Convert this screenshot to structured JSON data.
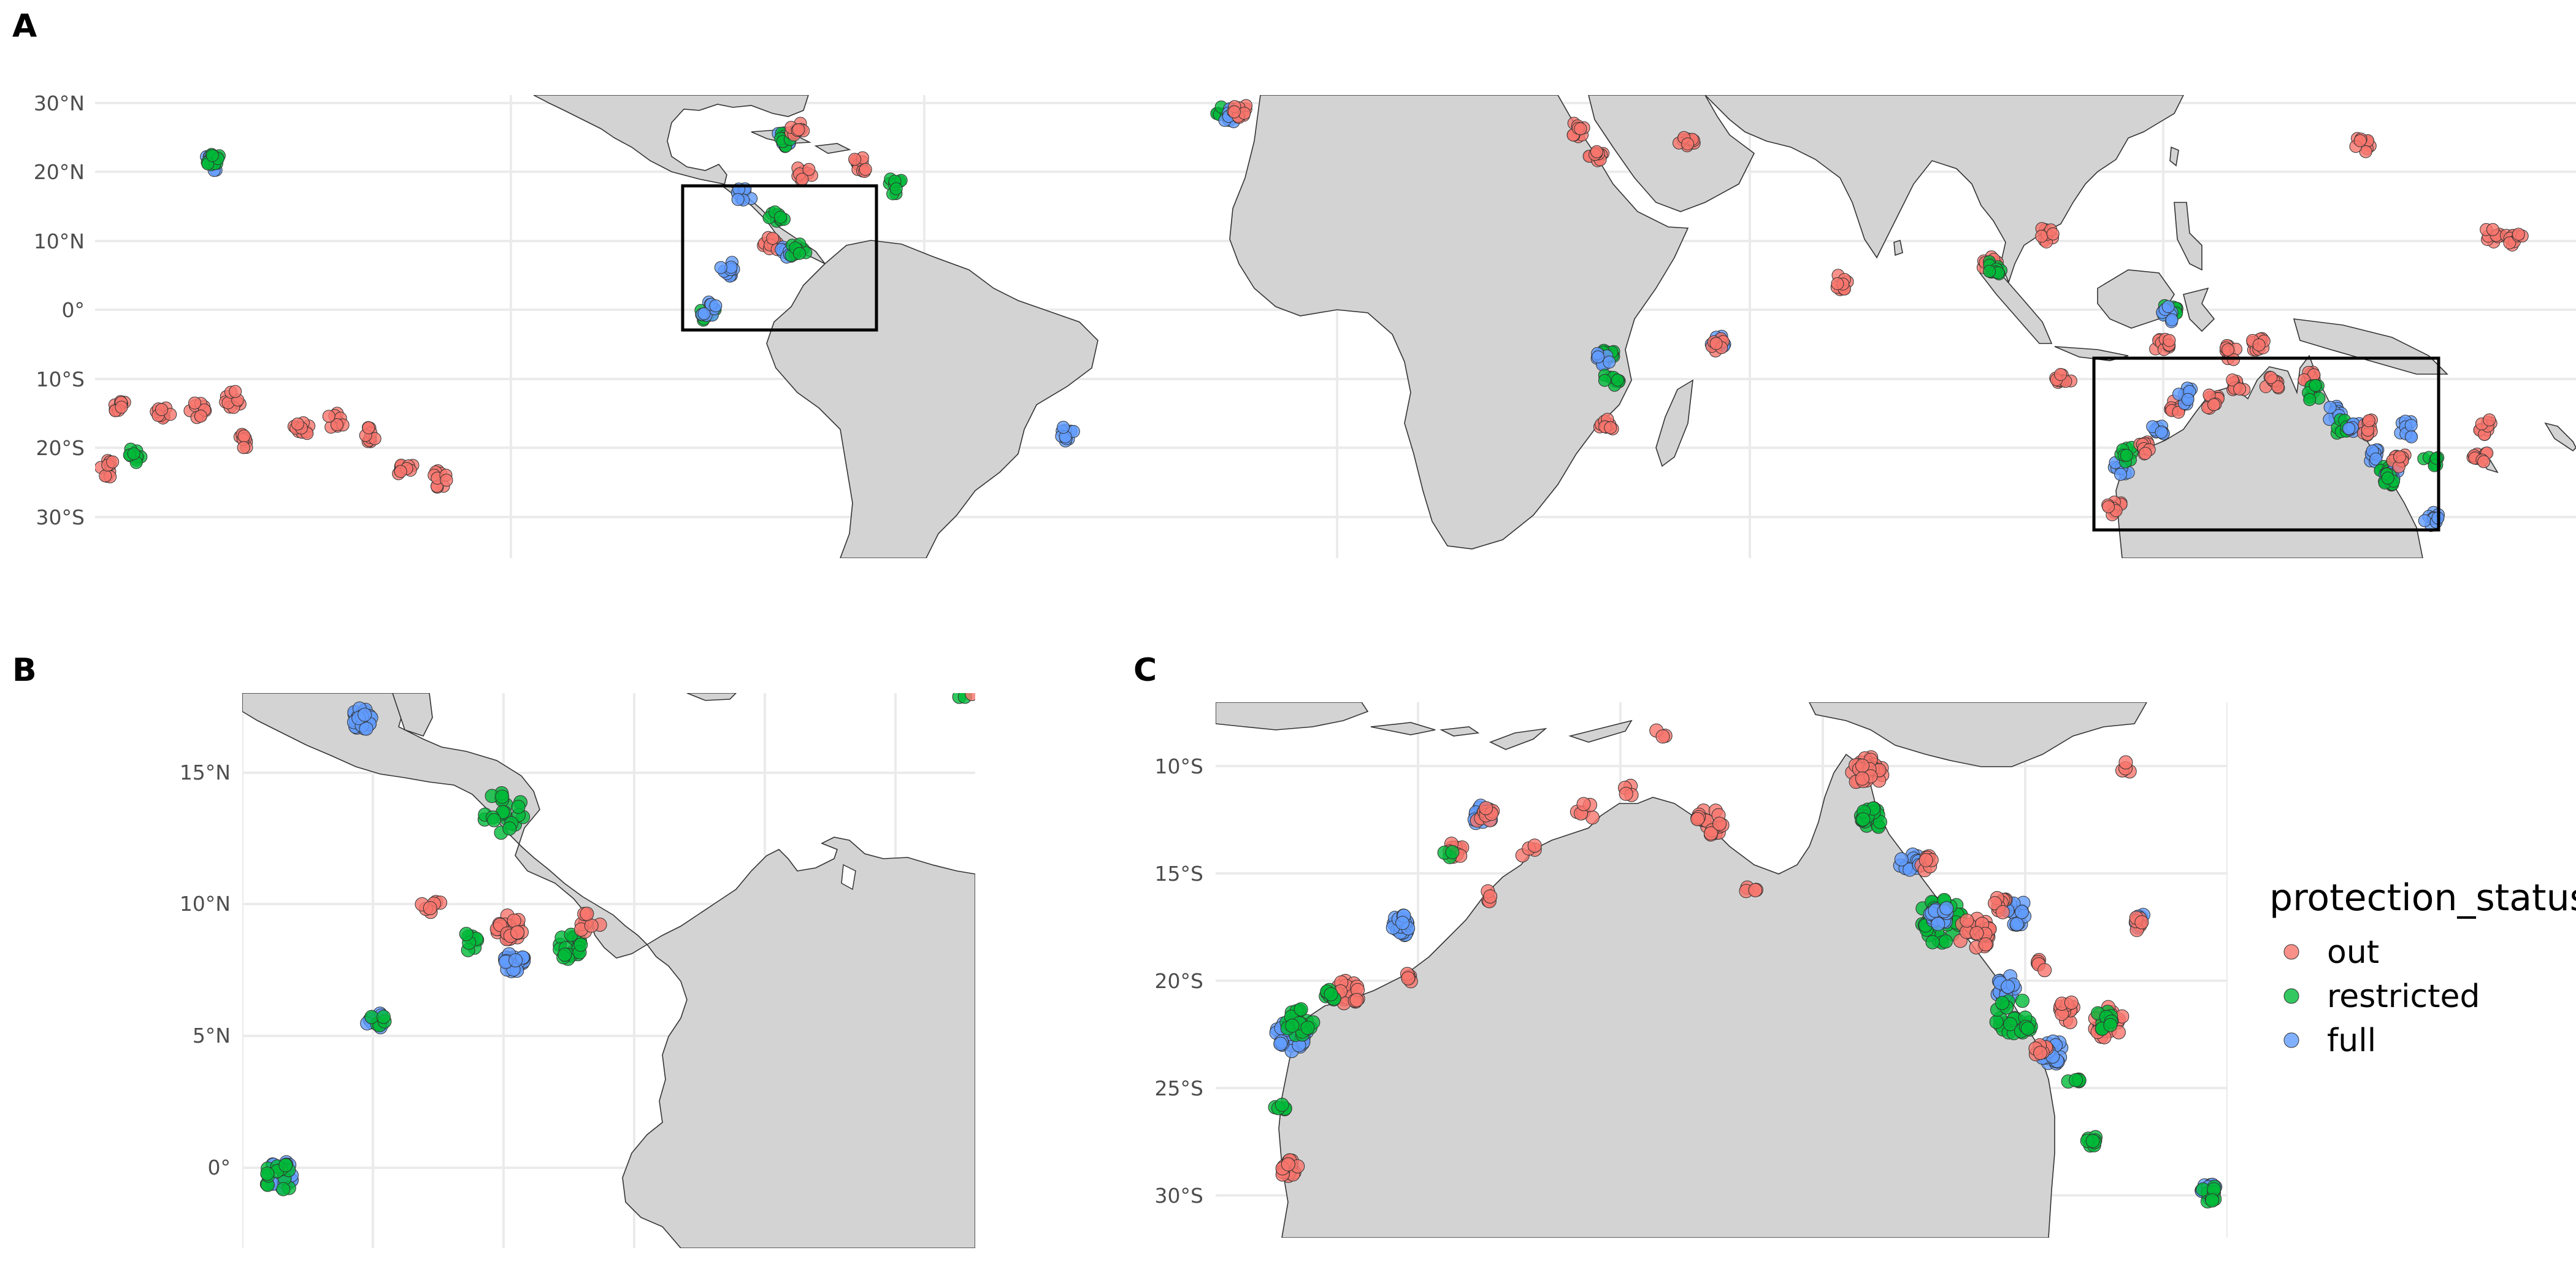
{
  "panels": {
    "A": {
      "letter": "A",
      "y_ticks": [
        "30°N",
        "20°N",
        "10°N",
        "0°",
        "10°S",
        "20°S",
        "30°S"
      ]
    },
    "B": {
      "letter": "B",
      "y_ticks": [
        "15°N",
        "10°N",
        "5°N",
        "0°"
      ]
    },
    "C": {
      "letter": "C",
      "y_ticks": [
        "10°S",
        "15°S",
        "20°S",
        "25°S",
        "30°S"
      ]
    }
  },
  "legend": {
    "title": "protection_status",
    "items": [
      {
        "label": "out",
        "color": "#F8766D"
      },
      {
        "label": "restricted",
        "color": "#00BA38"
      },
      {
        "label": "full",
        "color": "#619CFF"
      }
    ]
  },
  "map_data": {
    "type": "map",
    "projection": "equirectangular",
    "land_color": "#d3d3d3",
    "grid": true,
    "legend_placement": "right",
    "colors": {
      "out": "#F8766D",
      "restricted": "#00BA38",
      "full": "#619CFF"
    },
    "panel_A": {
      "lon_range": [
        -180,
        180
      ],
      "lat_range": [
        -36,
        31
      ],
      "extent_boxes": [
        {
          "lon": [
            -92,
            -64
          ],
          "lat": [
            -3,
            18
          ]
        },
        {
          "lon": [
            110,
            160
          ],
          "lat": [
            -32,
            -7
          ]
        }
      ],
      "clusters": [
        {
          "status": "full",
          "lon": -163,
          "lat": 21.3
        },
        {
          "status": "restricted",
          "lon": -163,
          "lat": 21.8
        },
        {
          "status": "out",
          "lon": -176,
          "lat": -14
        },
        {
          "status": "out",
          "lon": -170,
          "lat": -15
        },
        {
          "status": "out",
          "lon": -165,
          "lat": -14.5
        },
        {
          "status": "out",
          "lon": -160,
          "lat": -13
        },
        {
          "status": "out",
          "lon": -158,
          "lat": -19
        },
        {
          "status": "out",
          "lon": -150,
          "lat": -17
        },
        {
          "status": "out",
          "lon": -145,
          "lat": -16
        },
        {
          "status": "out",
          "lon": -140,
          "lat": -18
        },
        {
          "status": "out",
          "lon": -135,
          "lat": -23
        },
        {
          "status": "out",
          "lon": -130,
          "lat": -24.5
        },
        {
          "status": "out",
          "lon": -178,
          "lat": -23
        },
        {
          "status": "restricted",
          "lon": -174,
          "lat": -21
        },
        {
          "status": "full",
          "lon": -86,
          "lat": 16.5
        },
        {
          "status": "out",
          "lon": -82,
          "lat": 9.5
        },
        {
          "status": "full",
          "lon": -80,
          "lat": 8
        },
        {
          "status": "restricted",
          "lon": -78,
          "lat": 8.5
        },
        {
          "status": "restricted",
          "lon": -81,
          "lat": 13.5
        },
        {
          "status": "full",
          "lon": -88,
          "lat": 6
        },
        {
          "status": "restricted",
          "lon": -91,
          "lat": -0.5
        },
        {
          "status": "full",
          "lon": -91,
          "lat": 0
        },
        {
          "status": "full",
          "lon": -80,
          "lat": 25
        },
        {
          "status": "restricted",
          "lon": -80,
          "lat": 24.5
        },
        {
          "status": "out",
          "lon": -78,
          "lat": 26
        },
        {
          "status": "out",
          "lon": -77,
          "lat": 20
        },
        {
          "status": "out",
          "lon": -69,
          "lat": 21
        },
        {
          "status": "restricted",
          "lon": -64,
          "lat": 18
        },
        {
          "status": "full",
          "lon": -39,
          "lat": -18
        },
        {
          "status": "restricted",
          "lon": -16,
          "lat": 28.5
        },
        {
          "status": "full",
          "lon": -15,
          "lat": 28
        },
        {
          "status": "out",
          "lon": -14,
          "lat": 29
        },
        {
          "status": "out",
          "lon": 35,
          "lat": 26
        },
        {
          "status": "out",
          "lon": 38,
          "lat": 22
        },
        {
          "status": "out",
          "lon": 51,
          "lat": 24
        },
        {
          "status": "restricted",
          "lon": 39.5,
          "lat": -6
        },
        {
          "status": "full",
          "lon": 39,
          "lat": -7
        },
        {
          "status": "restricted",
          "lon": 40,
          "lat": -10
        },
        {
          "status": "out",
          "lon": 39.5,
          "lat": -17
        },
        {
          "status": "full",
          "lon": 55.5,
          "lat": -4.5
        },
        {
          "status": "out",
          "lon": 55.5,
          "lat": -4.8
        },
        {
          "status": "out",
          "lon": 73.5,
          "lat": 4
        },
        {
          "status": "out",
          "lon": 95,
          "lat": 6.5
        },
        {
          "status": "restricted",
          "lon": 95.5,
          "lat": 6
        },
        {
          "status": "out",
          "lon": 103,
          "lat": 11
        },
        {
          "status": "out",
          "lon": 105.5,
          "lat": -10.5
        },
        {
          "status": "restricted",
          "lon": 121,
          "lat": 0
        },
        {
          "status": "full",
          "lon": 121,
          "lat": -0.5
        },
        {
          "status": "out",
          "lon": 120,
          "lat": -5
        },
        {
          "status": "out",
          "lon": 130,
          "lat": -6
        },
        {
          "status": "out",
          "lon": 134,
          "lat": -5
        },
        {
          "status": "out",
          "lon": 149,
          "lat": 24
        },
        {
          "status": "out",
          "lon": 168,
          "lat": 11
        },
        {
          "status": "out",
          "lon": 171,
          "lat": 10.5
        },
        {
          "status": "out",
          "lon": 167,
          "lat": -17
        },
        {
          "status": "out",
          "lon": 166,
          "lat": -21
        },
        {
          "status": "restricted",
          "lon": 159,
          "lat": -22
        },
        {
          "status": "full",
          "lon": 159,
          "lat": -30
        },
        {
          "status": "out",
          "lon": 113,
          "lat": -28.5
        },
        {
          "status": "full",
          "lon": 114,
          "lat": -23
        },
        {
          "status": "restricted",
          "lon": 115,
          "lat": -21
        },
        {
          "status": "out",
          "lon": 117,
          "lat": -20
        },
        {
          "status": "full",
          "lon": 119,
          "lat": -17.5
        },
        {
          "status": "out",
          "lon": 122,
          "lat": -14
        },
        {
          "status": "full",
          "lon": 123.5,
          "lat": -12.5
        },
        {
          "status": "out",
          "lon": 127,
          "lat": -13
        },
        {
          "status": "out",
          "lon": 131,
          "lat": -11
        },
        {
          "status": "out",
          "lon": 136,
          "lat": -10.5
        },
        {
          "status": "out",
          "lon": 141.5,
          "lat": -10
        },
        {
          "status": "restricted",
          "lon": 142,
          "lat": -12
        },
        {
          "status": "full",
          "lon": 145,
          "lat": -15
        },
        {
          "status": "restricted",
          "lon": 146,
          "lat": -17
        },
        {
          "status": "full",
          "lon": 148,
          "lat": -17.5
        },
        {
          "status": "out",
          "lon": 150,
          "lat": -17
        },
        {
          "status": "full",
          "lon": 151,
          "lat": -21
        },
        {
          "status": "restricted",
          "lon": 152.5,
          "lat": -22.5
        },
        {
          "status": "full",
          "lon": 153,
          "lat": -23.5
        },
        {
          "status": "restricted",
          "lon": 152.5,
          "lat": -24.5
        },
        {
          "status": "out",
          "lon": 154.5,
          "lat": -21.5
        },
        {
          "status": "full",
          "lon": 155.5,
          "lat": -17.3
        }
      ]
    },
    "panel_B": {
      "lon_range": [
        -92,
        -64
      ],
      "lat_range": [
        -3,
        18
      ],
      "clusters": [
        {
          "status": "full",
          "lon": -87.5,
          "lat": 17,
          "n": 22,
          "spread": 0.45
        },
        {
          "status": "restricted",
          "lon": -82,
          "lat": 13.5,
          "n": 22,
          "spread": 0.8
        },
        {
          "status": "out",
          "lon": -84.8,
          "lat": 10,
          "n": 7,
          "spread": 0.4
        },
        {
          "status": "restricted",
          "lon": -83.3,
          "lat": 8.6,
          "n": 8,
          "spread": 0.35
        },
        {
          "status": "out",
          "lon": -81.8,
          "lat": 9.1,
          "n": 30,
          "spread": 0.5
        },
        {
          "status": "full",
          "lon": -81.6,
          "lat": 7.8,
          "n": 25,
          "spread": 0.4
        },
        {
          "status": "restricted",
          "lon": -79.5,
          "lat": 8.4,
          "n": 22,
          "spread": 0.5
        },
        {
          "status": "out",
          "lon": -78.8,
          "lat": 9.3,
          "n": 10,
          "spread": 0.5
        },
        {
          "status": "full",
          "lon": -86.9,
          "lat": 5.6,
          "n": 12,
          "spread": 0.35
        },
        {
          "status": "restricted",
          "lon": -86.8,
          "lat": 5.6,
          "n": 5,
          "spread": 0.3
        },
        {
          "status": "full",
          "lon": -90.6,
          "lat": -0.2,
          "n": 16,
          "spread": 0.6
        },
        {
          "status": "restricted",
          "lon": -90.6,
          "lat": -0.4,
          "n": 14,
          "spread": 0.6
        },
        {
          "status": "restricted",
          "lon": -64.5,
          "lat": 18,
          "n": 2,
          "spread": 0.2
        },
        {
          "status": "out",
          "lon": -64.2,
          "lat": 18,
          "n": 1,
          "spread": 0.1
        }
      ]
    },
    "panel_C": {
      "lon_range": [
        110,
        160
      ],
      "lat_range": [
        -32,
        -7.5
      ],
      "clusters": [
        {
          "status": "out",
          "lon": 113.6,
          "lat": -28.7,
          "n": 22,
          "spread": 0.5
        },
        {
          "status": "restricted",
          "lon": 113.2,
          "lat": -25.8,
          "n": 5,
          "spread": 0.3
        },
        {
          "status": "full",
          "lon": 113.8,
          "lat": -22.5,
          "n": 30,
          "spread": 0.8
        },
        {
          "status": "restricted",
          "lon": 114.2,
          "lat": -22,
          "n": 20,
          "spread": 0.7
        },
        {
          "status": "out",
          "lon": 116.5,
          "lat": -20.6,
          "n": 25,
          "spread": 0.6
        },
        {
          "status": "restricted",
          "lon": 115.5,
          "lat": -20.8,
          "n": 8,
          "spread": 0.4
        },
        {
          "status": "full",
          "lon": 119.2,
          "lat": -17.4,
          "n": 22,
          "spread": 0.5
        },
        {
          "status": "out",
          "lon": 119.5,
          "lat": -19.8,
          "n": 5,
          "spread": 0.3
        },
        {
          "status": "out",
          "lon": 121.8,
          "lat": -13.9,
          "n": 10,
          "spread": 0.4
        },
        {
          "status": "restricted",
          "lon": 121.5,
          "lat": -14.2,
          "n": 3,
          "spread": 0.3
        },
        {
          "status": "full",
          "lon": 123.2,
          "lat": -12.3,
          "n": 14,
          "spread": 0.5
        },
        {
          "status": "out",
          "lon": 123.2,
          "lat": -12.2,
          "n": 12,
          "spread": 0.5
        },
        {
          "status": "out",
          "lon": 123.5,
          "lat": -16,
          "n": 4,
          "spread": 0.3
        },
        {
          "status": "out",
          "lon": 125.5,
          "lat": -14,
          "n": 4,
          "spread": 0.4
        },
        {
          "status": "out",
          "lon": 128.3,
          "lat": -12.2,
          "n": 6,
          "spread": 0.5
        },
        {
          "status": "out",
          "lon": 130.5,
          "lat": -11.1,
          "n": 4,
          "spread": 0.3
        },
        {
          "status": "out",
          "lon": 134.5,
          "lat": -12.5,
          "n": 20,
          "spread": 0.7
        },
        {
          "status": "out",
          "lon": 136.5,
          "lat": -15.8,
          "n": 4,
          "spread": 0.3
        },
        {
          "status": "out",
          "lon": 142.2,
          "lat": -10.3,
          "n": 35,
          "spread": 0.8
        },
        {
          "status": "restricted",
          "lon": 142.3,
          "lat": -12.5,
          "n": 20,
          "spread": 0.6
        },
        {
          "status": "full",
          "lon": 144.3,
          "lat": -14.5,
          "n": 14,
          "spread": 0.5
        },
        {
          "status": "out",
          "lon": 145,
          "lat": -14.5,
          "n": 8,
          "spread": 0.4
        },
        {
          "status": "restricted",
          "lon": 145.8,
          "lat": -17.2,
          "n": 40,
          "spread": 1.1
        },
        {
          "status": "full",
          "lon": 145.8,
          "lat": -16.8,
          "n": 14,
          "spread": 0.6
        },
        {
          "status": "out",
          "lon": 147.5,
          "lat": -17.8,
          "n": 25,
          "spread": 0.8
        },
        {
          "status": "full",
          "lon": 149.6,
          "lat": -16.8,
          "n": 18,
          "spread": 0.6
        },
        {
          "status": "out",
          "lon": 148.8,
          "lat": -16.5,
          "n": 10,
          "spread": 0.4
        },
        {
          "status": "out",
          "lon": 150.8,
          "lat": -19.3,
          "n": 6,
          "spread": 0.3
        },
        {
          "status": "full",
          "lon": 149.1,
          "lat": -20.3,
          "n": 18,
          "spread": 0.6
        },
        {
          "status": "restricted",
          "lon": 149.5,
          "lat": -21.8,
          "n": 25,
          "spread": 1.0
        },
        {
          "status": "full",
          "lon": 151.3,
          "lat": -23.3,
          "n": 22,
          "spread": 0.6
        },
        {
          "status": "out",
          "lon": 150.8,
          "lat": -23.2,
          "n": 8,
          "spread": 0.4
        },
        {
          "status": "out",
          "lon": 152.3,
          "lat": -21.4,
          "n": 12,
          "spread": 0.6
        },
        {
          "status": "out",
          "lon": 154.1,
          "lat": -22,
          "n": 20,
          "spread": 0.8
        },
        {
          "status": "restricted",
          "lon": 153.8,
          "lat": -21.8,
          "n": 10,
          "spread": 0.5
        },
        {
          "status": "restricted",
          "lon": 152.4,
          "lat": -24.6,
          "n": 5,
          "spread": 0.3
        },
        {
          "status": "restricted",
          "lon": 153.3,
          "lat": -27.4,
          "n": 8,
          "spread": 0.3
        },
        {
          "status": "full",
          "lon": 155.6,
          "lat": -17.2,
          "n": 10,
          "spread": 0.35
        },
        {
          "status": "out",
          "lon": 155.6,
          "lat": -17.3,
          "n": 6,
          "spread": 0.35
        },
        {
          "status": "full",
          "lon": 159.1,
          "lat": -29.8,
          "n": 14,
          "spread": 0.4
        },
        {
          "status": "restricted",
          "lon": 159.1,
          "lat": -29.9,
          "n": 10,
          "spread": 0.4
        },
        {
          "status": "out",
          "lon": 155,
          "lat": -10,
          "n": 4,
          "spread": 0.3
        },
        {
          "status": "out",
          "lon": 132,
          "lat": -8.5,
          "n": 3,
          "spread": 0.3
        }
      ]
    }
  }
}
